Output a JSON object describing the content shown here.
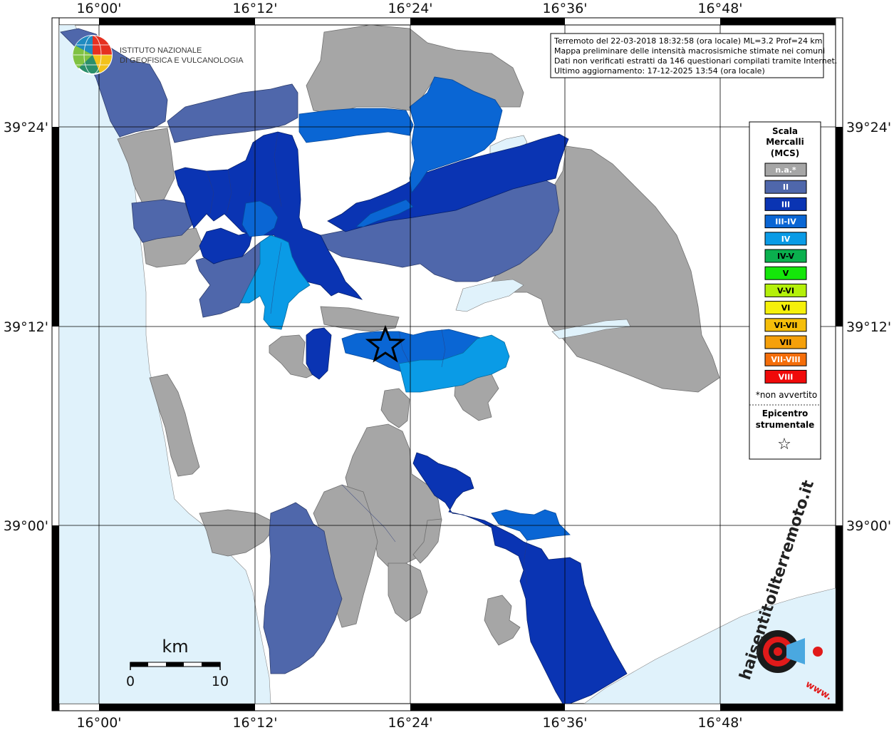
{
  "lon_labels": [
    "16°00'",
    "16°12'",
    "16°24'",
    "16°36'",
    "16°48'"
  ],
  "lat_labels": [
    "39°24'",
    "39°12'",
    "39°00'"
  ],
  "info_box": {
    "line1": "Terremoto del 22-03-2018 18:32:58 (ora locale) ML=3.2 Prof=24 km",
    "line2": "Mappa preliminare delle intensità macrosismiche stimate nei comuni",
    "line3": "Dati non verificati estratti da 146 questionari compilati tramite Internet.",
    "line4": "Ultimo aggiornamento: 17-12-2025 13:54 (ora locale)"
  },
  "ingv_logo": {
    "line1": "ISTITUTO NAZIONALE",
    "line2": "DI GEOFISICA E VULCANOLOGIA"
  },
  "legend": {
    "title1": "Scala",
    "title2": "Mercalli",
    "title3": "(MCS)",
    "items": [
      {
        "label": "n.a.*",
        "color": "#a6a6a6",
        "text_color": "#ffffff"
      },
      {
        "label": "II",
        "color": "#4f67ab",
        "text_color": "#ffffff"
      },
      {
        "label": "III",
        "color": "#0a34b3",
        "text_color": "#ffffff"
      },
      {
        "label": "III-IV",
        "color": "#0a66d4",
        "text_color": "#ffffff"
      },
      {
        "label": "IV",
        "color": "#0a9be6",
        "text_color": "#ffffff"
      },
      {
        "label": "IV-V",
        "color": "#0ab04e",
        "text_color": "#000000"
      },
      {
        "label": "V",
        "color": "#14e60a",
        "text_color": "#000000"
      },
      {
        "label": "V-VI",
        "color": "#b4f00a",
        "text_color": "#000000"
      },
      {
        "label": "VI",
        "color": "#f5f00a",
        "text_color": "#000000"
      },
      {
        "label": "VI-VII",
        "color": "#f5be0a",
        "text_color": "#000000"
      },
      {
        "label": "VII",
        "color": "#f5a00a",
        "text_color": "#000000"
      },
      {
        "label": "VII-VIII",
        "color": "#f56e0a",
        "text_color": "#ffffff"
      },
      {
        "label": "VIII",
        "color": "#f00a0a",
        "text_color": "#ffffff"
      }
    ],
    "note": "*non avvertito",
    "epicenter1": "Epicentro",
    "epicenter2": "strumentale",
    "star": "☆"
  },
  "scale_bar": {
    "unit": "km",
    "min": "0",
    "max": "10"
  },
  "hsit_logo": {
    "text": "haisentitoilterremoto.it",
    "www": "www."
  },
  "colors": {
    "sea": "#e0f2fb",
    "land": "#ffffff",
    "lake": "#e0f2fb"
  }
}
